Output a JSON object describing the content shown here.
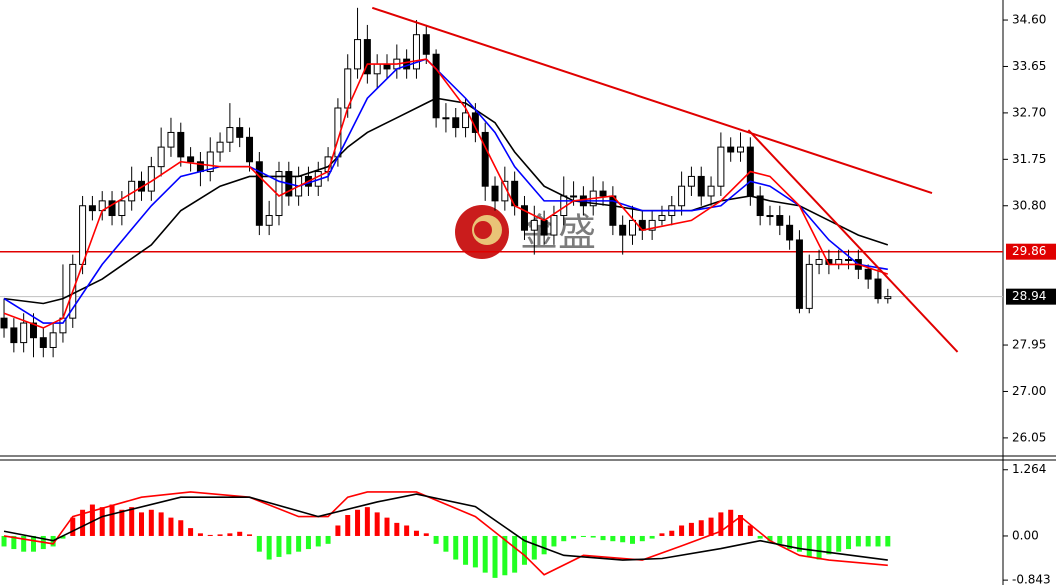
{
  "chart_data": [
    {
      "type": "candlestick",
      "watermark": "金盛",
      "xlim": [
        -0.41,
        101.73
      ],
      "ylim": [
        25.7,
        35.01
      ],
      "yticks": [
        26.05,
        {
          "value": 27,
          "label": "27.00"
        },
        27.95,
        {
          "value": 30.8,
          "label": "30.80"
        },
        31.75,
        {
          "value": 32.7,
          "label": "32.70"
        },
        33.65,
        {
          "value": 34.6,
          "label": "34.60"
        }
      ],
      "up_color": "#ffffff",
      "down_color": "#000000",
      "candles": [
        [
          28.5,
          28.9,
          28.1,
          28.3
        ],
        [
          28.3,
          28.5,
          27.8,
          28.0
        ],
        [
          28.0,
          28.6,
          27.8,
          28.4
        ],
        [
          28.4,
          28.6,
          27.7,
          28.1
        ],
        [
          28.1,
          28.3,
          27.7,
          27.9
        ],
        [
          27.9,
          28.4,
          27.7,
          28.2
        ],
        [
          28.2,
          29.6,
          28.0,
          28.5
        ],
        [
          28.5,
          29.8,
          28.3,
          29.6
        ],
        [
          29.6,
          31.0,
          29.4,
          30.8
        ],
        [
          30.8,
          31.0,
          30.5,
          30.7
        ],
        [
          30.7,
          31.1,
          30.5,
          30.9
        ],
        [
          30.9,
          31.1,
          30.4,
          30.6
        ],
        [
          30.6,
          31.1,
          30.4,
          30.9
        ],
        [
          30.9,
          31.6,
          30.7,
          31.3
        ],
        [
          31.3,
          31.5,
          30.9,
          31.1
        ],
        [
          31.1,
          31.8,
          30.9,
          31.6
        ],
        [
          31.6,
          32.4,
          31.4,
          32.0
        ],
        [
          32.0,
          32.6,
          31.8,
          32.3
        ],
        [
          32.3,
          32.5,
          31.6,
          31.8
        ],
        [
          31.8,
          32.0,
          31.5,
          31.7
        ],
        [
          31.7,
          31.9,
          31.2,
          31.5
        ],
        [
          31.5,
          32.2,
          31.3,
          31.9
        ],
        [
          31.9,
          32.3,
          31.7,
          32.1
        ],
        [
          32.1,
          32.9,
          31.9,
          32.4
        ],
        [
          32.4,
          32.6,
          32.0,
          32.2
        ],
        [
          32.2,
          32.4,
          31.5,
          31.7
        ],
        [
          31.7,
          31.9,
          30.2,
          30.4
        ],
        [
          30.4,
          30.9,
          30.2,
          30.6
        ],
        [
          30.6,
          31.7,
          30.4,
          31.5
        ],
        [
          31.5,
          31.7,
          30.8,
          31.0
        ],
        [
          31.0,
          31.6,
          30.8,
          31.4
        ],
        [
          31.4,
          31.6,
          31.0,
          31.2
        ],
        [
          31.2,
          31.7,
          31.0,
          31.5
        ],
        [
          31.5,
          32.0,
          31.3,
          31.8
        ],
        [
          31.8,
          33.0,
          31.6,
          32.8
        ],
        [
          32.8,
          33.9,
          32.6,
          33.6
        ],
        [
          33.6,
          34.85,
          33.4,
          34.2
        ],
        [
          34.2,
          34.5,
          33.3,
          33.5
        ],
        [
          33.5,
          33.9,
          33.2,
          33.7
        ],
        [
          33.7,
          33.9,
          33.4,
          33.6
        ],
        [
          33.6,
          34.1,
          33.4,
          33.8
        ],
        [
          33.8,
          34.0,
          33.4,
          33.6
        ],
        [
          33.6,
          34.6,
          33.4,
          34.3
        ],
        [
          34.3,
          34.5,
          33.7,
          33.9
        ],
        [
          33.9,
          34.0,
          32.4,
          32.6
        ],
        [
          32.6,
          32.9,
          32.3,
          32.6
        ],
        [
          32.6,
          32.8,
          32.2,
          32.4
        ],
        [
          32.4,
          33.0,
          32.2,
          32.7
        ],
        [
          32.7,
          32.9,
          32.1,
          32.3
        ],
        [
          32.3,
          32.5,
          30.9,
          31.2
        ],
        [
          31.2,
          31.4,
          30.7,
          30.9
        ],
        [
          30.9,
          31.6,
          30.7,
          31.3
        ],
        [
          31.3,
          31.5,
          30.6,
          30.8
        ],
        [
          30.8,
          31.0,
          30.1,
          30.3
        ],
        [
          30.3,
          30.8,
          29.8,
          30.5
        ],
        [
          30.5,
          30.7,
          30.0,
          30.2
        ],
        [
          30.2,
          30.8,
          30.0,
          30.6
        ],
        [
          30.6,
          31.4,
          30.4,
          31.0
        ],
        [
          31.0,
          31.3,
          30.8,
          31.0
        ],
        [
          31.0,
          31.2,
          30.6,
          30.8
        ],
        [
          30.8,
          31.4,
          30.6,
          31.1
        ],
        [
          31.1,
          31.3,
          30.8,
          31.0
        ],
        [
          31.0,
          31.2,
          30.2,
          30.4
        ],
        [
          30.4,
          30.6,
          29.8,
          30.2
        ],
        [
          30.2,
          30.8,
          30.0,
          30.5
        ],
        [
          30.5,
          30.7,
          30.1,
          30.3
        ],
        [
          30.3,
          30.7,
          30.1,
          30.5
        ],
        [
          30.5,
          30.8,
          30.4,
          30.6
        ],
        [
          30.6,
          31.0,
          30.4,
          30.8
        ],
        [
          30.8,
          31.5,
          30.6,
          31.2
        ],
        [
          31.2,
          31.6,
          31.0,
          31.4
        ],
        [
          31.4,
          31.6,
          30.8,
          31.0
        ],
        [
          31.0,
          31.4,
          30.8,
          31.2
        ],
        [
          31.2,
          32.3,
          31.0,
          32.0
        ],
        [
          32.0,
          32.2,
          31.7,
          31.9
        ],
        [
          31.9,
          32.3,
          31.7,
          32.0
        ],
        [
          32.0,
          32.2,
          30.8,
          31.0
        ],
        [
          31.0,
          31.2,
          30.4,
          30.6
        ],
        [
          30.6,
          30.8,
          30.4,
          30.6
        ],
        [
          30.6,
          30.8,
          30.2,
          30.4
        ],
        [
          30.4,
          30.6,
          29.9,
          30.1
        ],
        [
          30.1,
          30.3,
          28.6,
          28.7
        ],
        [
          28.7,
          29.8,
          28.6,
          29.6
        ],
        [
          29.6,
          29.9,
          29.4,
          29.7
        ],
        [
          29.7,
          29.9,
          29.4,
          29.6
        ],
        [
          29.6,
          29.9,
          29.5,
          29.7
        ],
        [
          29.7,
          29.9,
          29.5,
          29.7
        ],
        [
          29.7,
          29.9,
          29.3,
          29.5
        ],
        [
          29.5,
          29.6,
          29.1,
          29.3
        ],
        [
          29.3,
          29.5,
          28.8,
          28.9
        ],
        [
          28.9,
          29.1,
          28.8,
          28.94
        ]
      ],
      "lines": [
        {
          "color": "#000000",
          "x": [
            0,
            4,
            6,
            10,
            15,
            18,
            22,
            25,
            28,
            30,
            33,
            35,
            37,
            40,
            43,
            44,
            47,
            50,
            52,
            55,
            58,
            62,
            65,
            70,
            73,
            76,
            78,
            81,
            84,
            87,
            90
          ],
          "values": [
            28.9,
            28.8,
            28.9,
            29.3,
            30.0,
            30.7,
            31.2,
            31.4,
            31.4,
            31.4,
            31.6,
            32.0,
            32.3,
            32.6,
            32.9,
            33.0,
            32.9,
            32.5,
            31.9,
            31.2,
            30.9,
            30.8,
            30.7,
            30.7,
            30.9,
            31.0,
            30.9,
            30.8,
            30.5,
            30.2,
            30.0
          ]
        },
        {
          "color": "#0000ff",
          "x": [
            0,
            4,
            6,
            10,
            15,
            18,
            22,
            25,
            28,
            30,
            33,
            35,
            37,
            40,
            43,
            44,
            47,
            50,
            52,
            55,
            58,
            62,
            65,
            70,
            73,
            76,
            78,
            81,
            84,
            87,
            90
          ],
          "values": [
            28.9,
            28.4,
            28.4,
            29.6,
            30.8,
            31.4,
            31.6,
            31.6,
            31.3,
            31.2,
            31.4,
            32.2,
            33.0,
            33.6,
            33.8,
            33.6,
            33.0,
            32.3,
            31.6,
            30.9,
            30.9,
            30.9,
            30.7,
            30.7,
            30.8,
            31.3,
            31.2,
            30.8,
            30.1,
            29.6,
            29.5
          ]
        },
        {
          "color": "#ff0000",
          "x": [
            0,
            4,
            6,
            10,
            15,
            18,
            22,
            25,
            28,
            30,
            33,
            35,
            37,
            40,
            43,
            44,
            47,
            50,
            52,
            55,
            58,
            62,
            65,
            70,
            73,
            76,
            78,
            81,
            84,
            87,
            90
          ],
          "values": [
            28.6,
            28.3,
            28.5,
            30.7,
            31.3,
            31.7,
            31.6,
            31.6,
            31.0,
            31.2,
            31.5,
            32.8,
            33.7,
            33.7,
            33.8,
            33.6,
            32.8,
            31.6,
            30.8,
            30.5,
            30.9,
            31.0,
            30.3,
            30.5,
            30.9,
            31.5,
            31.4,
            30.8,
            29.6,
            29.6,
            29.4
          ]
        }
      ],
      "trendlines": [
        {
          "color": "#e00000",
          "x": [
            37.5,
            94.5
          ],
          "values": [
            34.85,
            31.06
          ]
        },
        {
          "color": "#e00000",
          "x": [
            75.8,
            97.1
          ],
          "values": [
            32.35,
            27.81
          ]
        }
      ],
      "hlines": [
        {
          "value": 29.86,
          "color": "#e00000",
          "text_color": "#ffffff"
        },
        {
          "value": 28.94,
          "color": "#c0c0c0",
          "label_bg": "#000000",
          "text_color": "#ffffff"
        }
      ]
    },
    {
      "type": "macd",
      "xlim": [
        -0.41,
        101.73
      ],
      "ylim": [
        -0.936,
        1.431
      ],
      "yticks": [
        1.264,
        {
          "value": 0,
          "label": "0.00"
        },
        -0.843
      ],
      "up_color": "#ff0000",
      "down_color": "#22ff22",
      "values": [
        -0.2,
        -0.25,
        -0.3,
        -0.3,
        -0.25,
        -0.2,
        -0.05,
        0.35,
        0.5,
        0.6,
        0.55,
        0.6,
        0.5,
        0.55,
        0.45,
        0.5,
        0.45,
        0.35,
        0.3,
        0.15,
        0.05,
        0.02,
        0.03,
        0.05,
        0.08,
        0.03,
        -0.3,
        -0.45,
        -0.4,
        -0.35,
        -0.3,
        -0.25,
        -0.2,
        -0.15,
        0.2,
        0.4,
        0.5,
        0.55,
        0.45,
        0.35,
        0.25,
        0.2,
        0.1,
        0.05,
        -0.15,
        -0.3,
        -0.45,
        -0.55,
        -0.6,
        -0.7,
        -0.8,
        -0.75,
        -0.7,
        -0.55,
        -0.45,
        -0.35,
        -0.2,
        -0.1,
        -0.05,
        -0.02,
        -0.03,
        -0.08,
        -0.1,
        -0.12,
        -0.15,
        -0.1,
        -0.05,
        0.05,
        0.1,
        0.2,
        0.25,
        0.3,
        0.35,
        0.45,
        0.5,
        0.4,
        0.2,
        -0.05,
        -0.1,
        -0.15,
        -0.25,
        -0.3,
        -0.4,
        -0.45,
        -0.35,
        -0.3,
        -0.25,
        -0.2,
        -0.2,
        -0.2,
        -0.2
      ],
      "lines": [
        {
          "color": "#ff0000",
          "x": [
            0,
            5,
            7,
            14,
            19,
            25,
            30,
            33,
            35,
            37,
            42,
            48,
            53,
            55,
            59,
            65,
            69,
            73,
            75,
            78,
            81,
            84,
            90
          ],
          "values": [
            0,
            -0.15,
            0.37,
            0.74,
            0.84,
            0.74,
            0.37,
            0.37,
            0.74,
            0.84,
            0.84,
            0.37,
            -0.37,
            -0.74,
            -0.37,
            -0.46,
            -0.19,
            0.09,
            0.37,
            -0.09,
            -0.37,
            -0.46,
            -0.56
          ]
        },
        {
          "color": "#000000",
          "x": [
            0,
            5,
            10,
            18,
            25,
            32,
            38,
            42,
            48,
            53,
            57,
            63,
            67,
            73,
            77,
            81,
            90
          ],
          "values": [
            0.09,
            -0.09,
            0.37,
            0.74,
            0.74,
            0.37,
            0.65,
            0.8,
            0.56,
            -0.09,
            -0.37,
            -0.46,
            -0.43,
            -0.24,
            -0.09,
            -0.24,
            -0.46
          ]
        }
      ]
    }
  ]
}
